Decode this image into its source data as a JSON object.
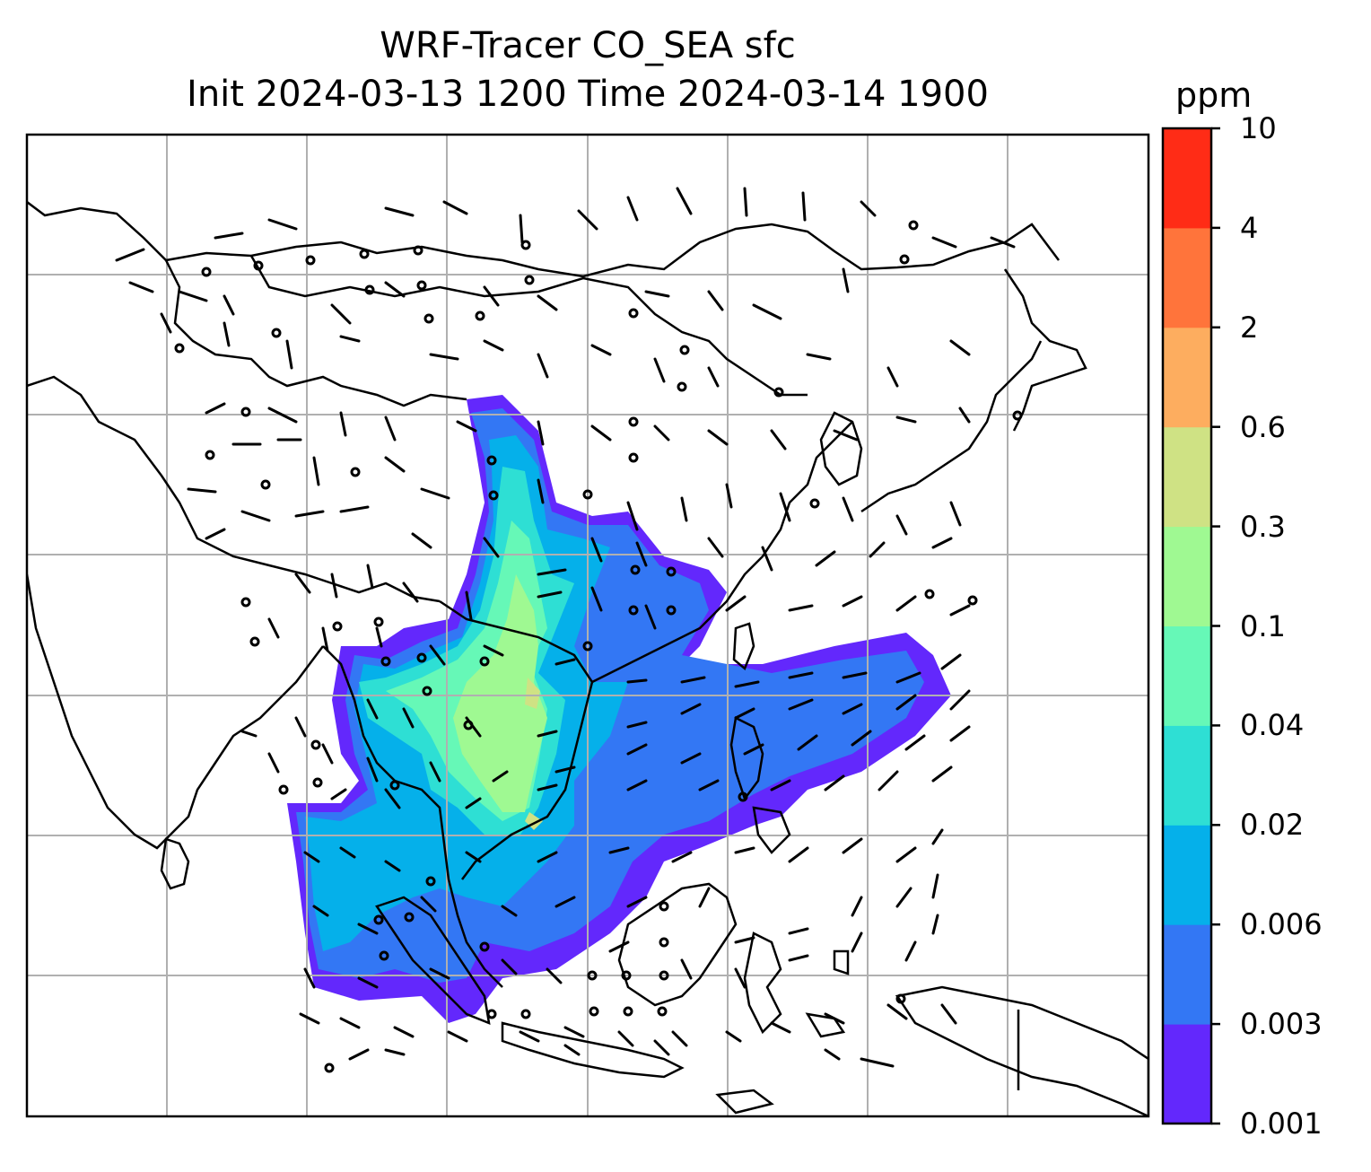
{
  "title": {
    "line1": "WRF-Tracer CO_SEA sfc",
    "line2": "Init 2024-03-13 1200 Time 2024-03-14 1900"
  },
  "colorbar": {
    "units": "ppm",
    "levels": [
      "0.001",
      "0.003",
      "0.006",
      "0.02",
      "0.04",
      "0.1",
      "0.3",
      "0.6",
      "2",
      "4",
      "10"
    ],
    "colors": [
      "#6328fc",
      "#3377f4",
      "#05b0ea",
      "#2edfd4",
      "#66f8b7",
      "#9ff992",
      "#cfe284",
      "#fdad5f",
      "#ff743b",
      "#ff2c16"
    ]
  },
  "map": {
    "projection": "lat-lon",
    "gridlines": true,
    "field": "CO_SEA surface tracer concentration",
    "overlay": "wind barbs"
  }
}
